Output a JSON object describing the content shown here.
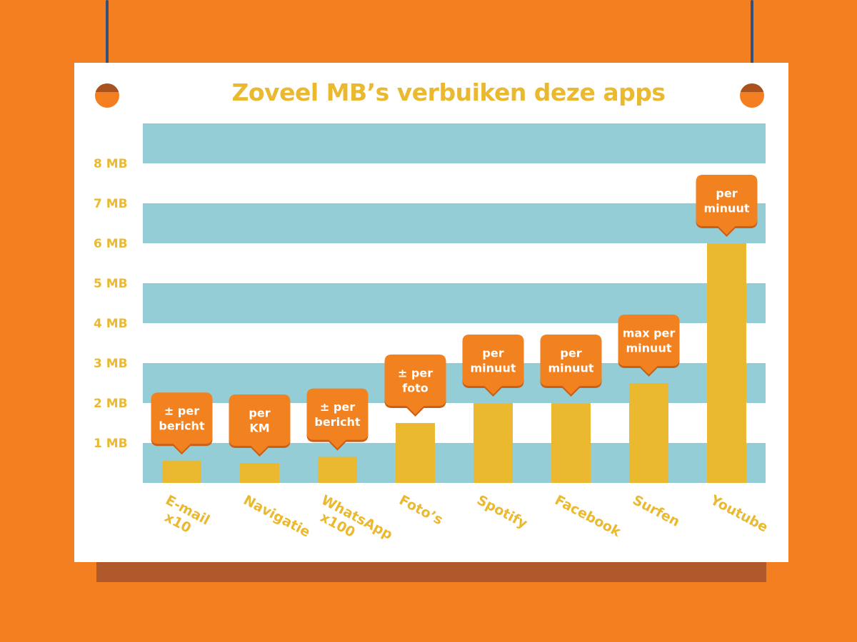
{
  "title": "Zoveel MB’s verbuiken deze apps",
  "colors": {
    "background": "#F47F20",
    "poster": "#FFFFFF",
    "stripe": "#94CDD5",
    "bar": "#EBB930",
    "callout": "#F28120",
    "label": "#EBB930",
    "string": "#35507A"
  },
  "chart_data": {
    "type": "bar",
    "title": "Zoveel MB’s verbuiken deze apps",
    "xlabel": "",
    "ylabel": "",
    "ylim": [
      0,
      9
    ],
    "yticks": [
      1,
      2,
      3,
      4,
      5,
      6,
      7,
      8
    ],
    "ytick_labels": [
      "1 MB",
      "2 MB",
      "3 MB",
      "4 MB",
      "5 MB",
      "6 MB",
      "7 MB",
      "8 MB"
    ],
    "grid": "horizontal alternating stripes",
    "categories": [
      [
        "E-mail",
        "x10"
      ],
      [
        "Navigatie"
      ],
      [
        "WhatsApp",
        "x100"
      ],
      [
        "Foto’s"
      ],
      [
        "Spotify"
      ],
      [
        "Facebook"
      ],
      [
        "Surfen"
      ],
      [
        "Youtube"
      ]
    ],
    "values": [
      0.55,
      0.5,
      0.65,
      1.5,
      2.0,
      2.0,
      2.5,
      6.0
    ],
    "annotations": [
      [
        "± per",
        "bericht"
      ],
      [
        "per",
        "KM"
      ],
      [
        "± per",
        "bericht"
      ],
      [
        "± per",
        "foto"
      ],
      [
        "per",
        "minuut"
      ],
      [
        "per",
        "minuut"
      ],
      [
        "max per",
        "minuut"
      ],
      [
        "per",
        "minuut"
      ]
    ]
  }
}
